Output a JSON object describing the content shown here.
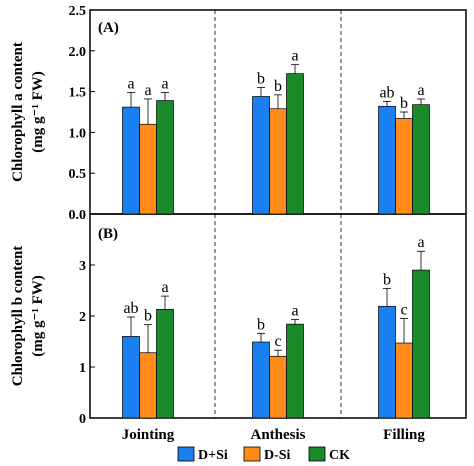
{
  "chart_data": [
    {
      "type": "bar",
      "panel_label": "(A)",
      "ylabel_line1": "Chlorophyll a content",
      "ylabel_line2": "(mg g⁻¹ FW)",
      "categories": [
        "Jointing",
        "Anthesis",
        "Filling"
      ],
      "ylim": [
        0,
        2.5
      ],
      "yticks": [
        "0.0",
        "0.5",
        "1.0",
        "1.5",
        "2.0",
        "2.5"
      ],
      "grid": false,
      "series": [
        {
          "name": "D+Si",
          "values": [
            1.31,
            1.44,
            1.32
          ],
          "errors": [
            0.18,
            0.11,
            0.06
          ],
          "letters": [
            "a",
            "b",
            "ab"
          ]
        },
        {
          "name": "D-Si",
          "values": [
            1.1,
            1.29,
            1.17
          ],
          "errors": [
            0.31,
            0.17,
            0.08
          ],
          "letters": [
            "a",
            "b",
            "b"
          ]
        },
        {
          "name": "CK",
          "values": [
            1.39,
            1.72,
            1.34
          ],
          "errors": [
            0.1,
            0.11,
            0.07
          ],
          "letters": [
            "a",
            "a",
            "a"
          ]
        }
      ]
    },
    {
      "type": "bar",
      "panel_label": "(B)",
      "ylabel_line1": "Chlorophyll b content",
      "ylabel_line2": "(mg g⁻¹ FW)",
      "categories": [
        "Jointing",
        "Anthesis",
        "Filling"
      ],
      "ylim": [
        0,
        4
      ],
      "yticks": [
        "0",
        "1",
        "2",
        "3"
      ],
      "grid": false,
      "series": [
        {
          "name": "D+Si",
          "values": [
            1.6,
            1.49,
            2.19
          ],
          "errors": [
            0.38,
            0.17,
            0.35
          ],
          "letters": [
            "ab",
            "b",
            "b"
          ]
        },
        {
          "name": "D-Si",
          "values": [
            1.28,
            1.21,
            1.47
          ],
          "errors": [
            0.55,
            0.12,
            0.48
          ],
          "letters": [
            "b",
            "c",
            "c"
          ]
        },
        {
          "name": "CK",
          "values": [
            2.13,
            1.84,
            2.9
          ],
          "errors": [
            0.26,
            0.09,
            0.37
          ],
          "letters": [
            "a",
            "a",
            "a"
          ]
        }
      ]
    }
  ],
  "legend": {
    "placement": "bottom",
    "items": [
      {
        "label": "D+Si",
        "color": "#1a7ff0"
      },
      {
        "label": "D-Si",
        "color": "#ff8c1a"
      },
      {
        "label": "CK",
        "color": "#1a8a2a"
      }
    ]
  }
}
